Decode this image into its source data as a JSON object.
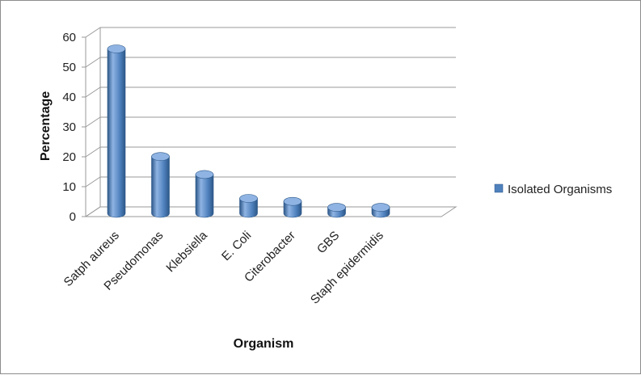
{
  "chart_data": {
    "type": "bar",
    "style": "3d-cylinder",
    "categories": [
      "Satph aureus",
      "Pseudomonas",
      "Klebsiella",
      "E. Coli",
      "Citerobacter",
      "GBS",
      "Staph epidermidis"
    ],
    "series": [
      {
        "name": "Isolated Organisms",
        "values": [
          55,
          19,
          13,
          5,
          4,
          2,
          2
        ]
      }
    ],
    "title": "",
    "xlabel": "Organism",
    "ylabel": "Percentage",
    "ylim": [
      0,
      60
    ],
    "yticks": [
      0,
      10,
      20,
      30,
      40,
      50,
      60
    ],
    "grid": true,
    "legend_position": "right",
    "colors": {
      "bar": "#4f81bd",
      "bar_dark": "#2c5788",
      "bar_light": "#8fb4e3",
      "grid": "#9a9a9a"
    }
  }
}
